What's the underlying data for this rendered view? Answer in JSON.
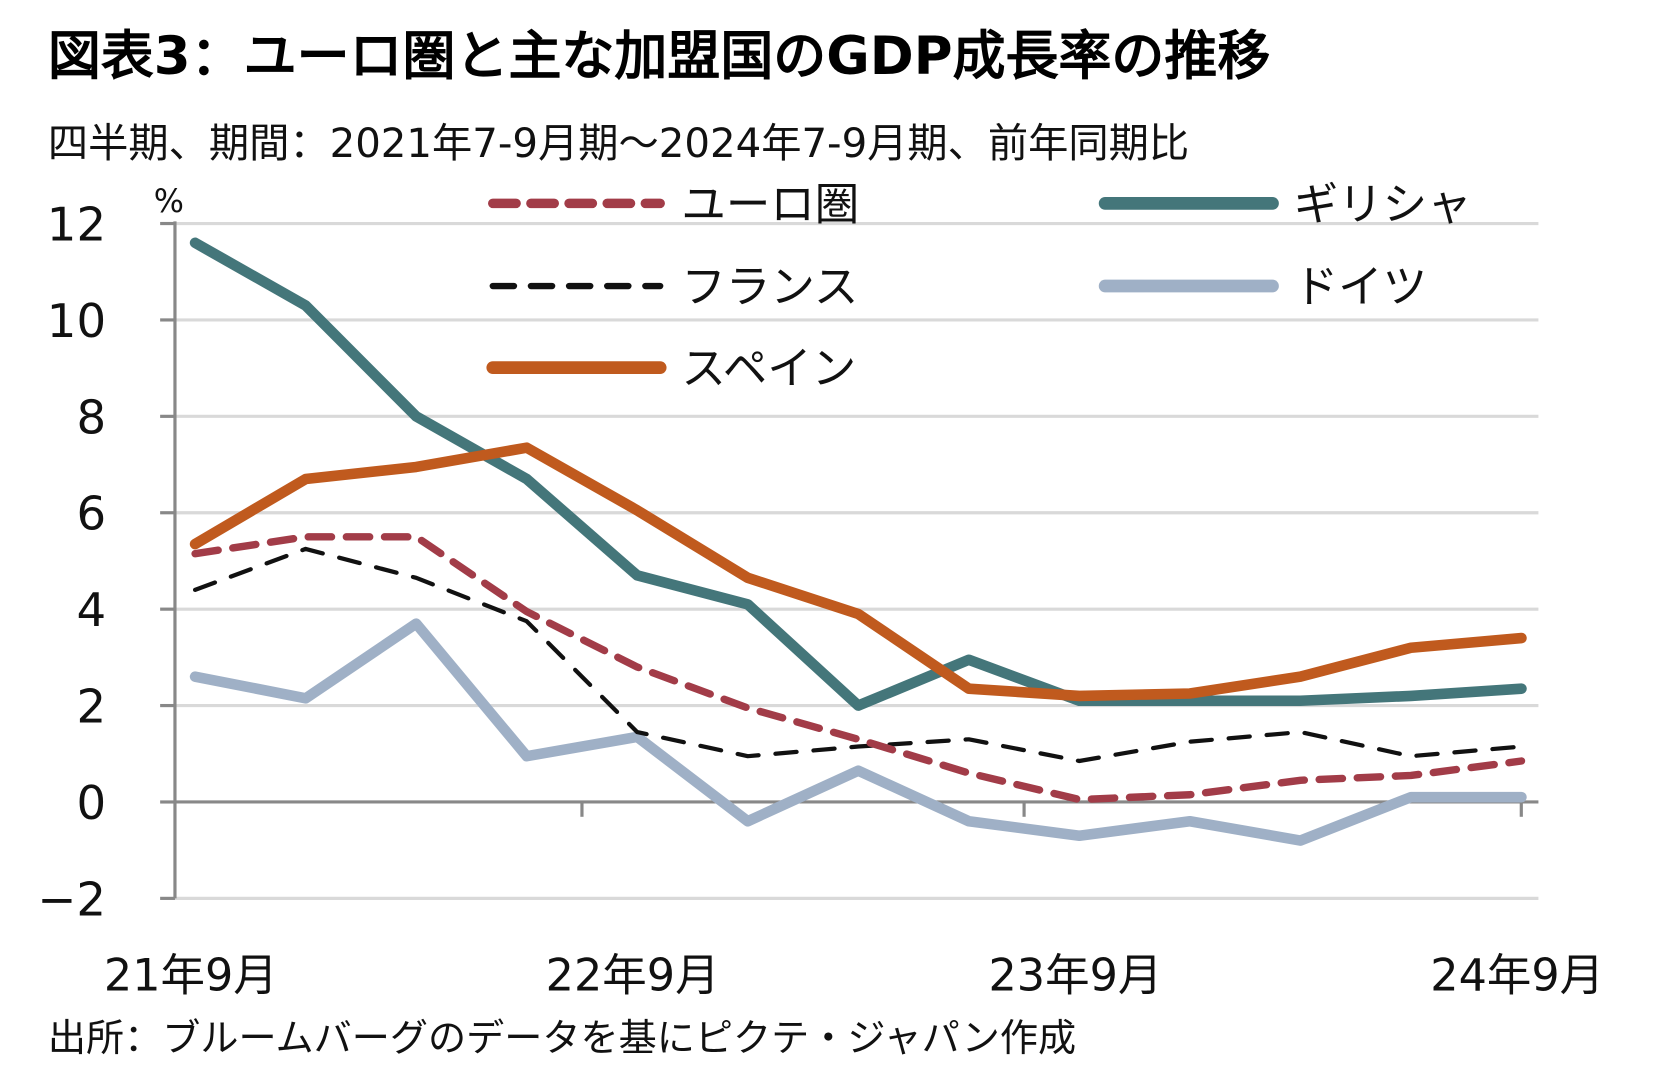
{
  "title": "図表3：ユーロ圏と主な加盟国のGDP成長率の推移",
  "subtitle": "四半期、期間：2021年7-9月期～2024年7-9月期、前年同期比",
  "source": "出所：ブルームバーグのデータを基にピクテ・ジャパン作成",
  "chart_data": {
    "type": "line",
    "title": "図表3：ユーロ圏と主な加盟国のGDP成長率の推移",
    "unit_label": "%",
    "ylim": [
      -2,
      12
    ],
    "yticks": [
      "12",
      "10",
      "8",
      "6",
      "4",
      "2",
      "0",
      "-2"
    ],
    "ytick_values": [
      12,
      10,
      8,
      6,
      4,
      2,
      0,
      -2
    ],
    "x": [
      "2021Q3",
      "2021Q4",
      "2022Q1",
      "2022Q2",
      "2022Q3",
      "2022Q4",
      "2023Q1",
      "2023Q2",
      "2023Q3",
      "2023Q4",
      "2024Q1",
      "2024Q2",
      "2024Q3"
    ],
    "xtick_labels": [
      {
        "index": 0,
        "label": "21年9月"
      },
      {
        "index": 4,
        "label": "22年9月"
      },
      {
        "index": 8,
        "label": "23年9月"
      },
      {
        "index": 12,
        "label": "24年9月"
      }
    ],
    "grid": true,
    "legend_position": "top",
    "series": [
      {
        "name": "ユーロ圏",
        "color": "#A23C48",
        "style": "dashed-thick",
        "values": [
          5.15,
          5.5,
          5.5,
          3.95,
          2.8,
          1.95,
          1.3,
          0.6,
          0.05,
          0.15,
          0.45,
          0.55,
          0.85
        ]
      },
      {
        "name": "ギリシャ",
        "color": "#44767A",
        "style": "solid",
        "values": [
          11.6,
          10.3,
          8.0,
          6.7,
          4.7,
          4.1,
          2.0,
          2.95,
          2.1,
          2.1,
          2.1,
          2.2,
          2.35
        ]
      },
      {
        "name": "フランス",
        "color": "#111111",
        "style": "dashed-thin",
        "values": [
          4.4,
          5.25,
          4.65,
          3.75,
          1.45,
          0.95,
          1.15,
          1.3,
          0.85,
          1.25,
          1.45,
          0.95,
          1.15
        ]
      },
      {
        "name": "ドイツ",
        "color": "#9FB0C6",
        "style": "solid",
        "values": [
          2.6,
          2.15,
          3.7,
          0.95,
          1.35,
          -0.4,
          0.65,
          -0.4,
          -0.7,
          -0.4,
          -0.8,
          0.1,
          0.1
        ]
      },
      {
        "name": "スペイン",
        "color": "#C05A1E",
        "style": "solid",
        "values": [
          5.35,
          6.7,
          6.95,
          7.35,
          6.05,
          4.65,
          3.9,
          2.35,
          2.2,
          2.25,
          2.6,
          3.2,
          3.4
        ]
      }
    ]
  }
}
